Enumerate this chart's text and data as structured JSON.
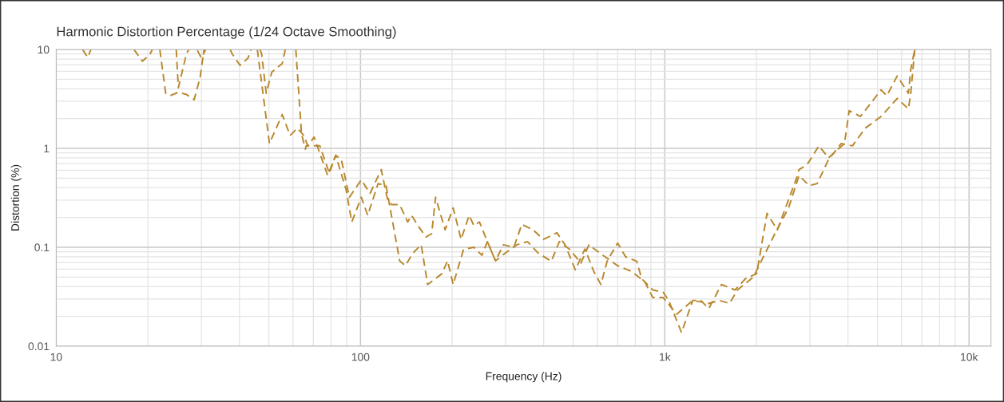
{
  "chart_data": {
    "type": "line",
    "title": "Harmonic Distortion Percentage (1/24 Octave Smoothing)",
    "xlabel": "Frequency (Hz)",
    "ylabel": "Distortion (%)",
    "log": "xy",
    "grid": true,
    "legend": false,
    "line_style": "dashed",
    "marker": "none",
    "xlim": [
      10,
      11800
    ],
    "ylim": [
      0.01,
      10
    ],
    "xticks": [
      10,
      100,
      {
        "value": 1000,
        "label": "1k"
      },
      {
        "value": 10000,
        "label": "10k"
      }
    ],
    "yticks": [
      0.01,
      0.1,
      1,
      10
    ],
    "series": [
      {
        "color": "#b8882e",
        "x": [
          12.2,
          12.7,
          13.0,
          15.0,
          18.0,
          19.2,
          20.3,
          20.7,
          22.5,
          24.8,
          25.2,
          26.8,
          27.3,
          28.2,
          29.1,
          30.0,
          31.0,
          34.0,
          37.3,
          37.8,
          40.2,
          42.7,
          43.7,
          45.0,
          46.7,
          47.3,
          49.0,
          51.1,
          55.3,
          56.6,
          59.0,
          61.3,
          64.0,
          65.9,
          66.3,
          73.5,
          79.0,
          82.9,
          86.5,
          91.9,
          100.6,
          107.5,
          117.0,
          122.8,
          126.6,
          134.5,
          142.9,
          147.2,
          154.5,
          164.1,
          171.3,
          176.5,
          189.7,
          201.6,
          214.1,
          227.5,
          235.9,
          246.0,
          261.2,
          277.7,
          295.0,
          319.2,
          338.8,
          369.0,
          399.0,
          442.2,
          469.9,
          508.2,
          546.5,
          584.1,
          616.6,
          647.1,
          699.8,
          743.6,
          809.1,
          839.5,
          913.3,
          988.1,
          1030,
          1135,
          1236,
          1312,
          1395,
          1536,
          1702,
          1841,
          2004,
          2168,
          2344,
          2710,
          2761,
          2931,
          3211,
          3451,
          3895,
          4036,
          4395,
          5140,
          5367,
          5805,
          6318,
          6433,
          6630
        ],
        "values": [
          10,
          8.3,
          10,
          null,
          10,
          7.6,
          8.9,
          10,
          null,
          10,
          4.1,
          9.1,
          10,
          null,
          9.8,
          8.2,
          10,
          null,
          10,
          9.1,
          6.9,
          8.2,
          10,
          null,
          10,
          9.1,
          3.6,
          5.9,
          7.2,
          10,
          null,
          10,
          1.4,
          0.98,
          1.06,
          1.06,
          0.56,
          0.85,
          0.77,
          0.32,
          0.48,
          0.35,
          0.61,
          0.3,
          0.27,
          0.27,
          0.18,
          0.21,
          0.165,
          0.127,
          0.137,
          0.32,
          0.15,
          0.25,
          0.12,
          0.21,
          0.165,
          0.18,
          0.114,
          0.073,
          0.106,
          0.1,
          0.17,
          0.15,
          0.12,
          0.14,
          0.106,
          0.059,
          0.096,
          0.057,
          0.042,
          0.073,
          0.11,
          0.08,
          0.072,
          0.048,
          0.037,
          0.035,
          0.029,
          0.0137,
          0.029,
          0.029,
          0.024,
          0.042,
          0.037,
          0.048,
          0.054,
          0.22,
          0.15,
          0.5,
          0.61,
          0.68,
          1.06,
          0.8,
          1.12,
          2.4,
          2.1,
          3.9,
          3.4,
          5.4,
          3.6,
          6.3,
          10
        ]
      },
      {
        "color": "#b8882e",
        "x": [
          21.9,
          22.9,
          23.7,
          25.2,
          26.8,
          28.4,
          29.7,
          30.6,
          38.0,
          45.8,
          50.2,
          55.3,
          58.7,
          62.0,
          65.1,
          67.1,
          70.4,
          78.0,
          82.9,
          89.7,
          93.6,
          100.6,
          105.6,
          114.2,
          121.3,
          134.5,
          140.3,
          149.0,
          158.3,
          166.2,
          185.2,
          193.2,
          201.6,
          218.1,
          235.9,
          250.6,
          261.2,
          277.7,
          300.4,
          326.9,
          353.7,
          382.5,
          423.6,
          450.3,
          487.2,
          530.2,
          563.3,
          609.4,
          699.8,
          776.0,
          859.0,
          913.3,
          988.1,
          1094,
          1236,
          1395,
          1508,
          1632,
          1734,
          1956,
          2078,
          2301,
          2552,
          2761,
          2985,
          3170,
          3451,
          3802,
          4138,
          4558,
          5140,
          5805,
          6318,
          6433,
          6630
        ],
        "values": [
          10,
          3.6,
          3.4,
          3.7,
          3.5,
          3.1,
          5.2,
          10,
          null,
          10,
          1.12,
          2.2,
          1.35,
          1.6,
          1.35,
          1.06,
          1.3,
          0.53,
          0.85,
          0.38,
          0.18,
          0.32,
          0.21,
          0.44,
          0.42,
          0.073,
          0.065,
          0.088,
          0.106,
          0.042,
          0.054,
          0.073,
          0.042,
          0.095,
          0.1,
          0.083,
          0.114,
          0.073,
          0.088,
          0.106,
          0.114,
          0.088,
          0.072,
          0.114,
          0.095,
          0.069,
          0.106,
          0.088,
          0.065,
          0.057,
          0.045,
          0.031,
          0.031,
          0.021,
          0.029,
          0.027,
          0.029,
          0.027,
          0.037,
          0.05,
          0.073,
          0.137,
          0.25,
          0.53,
          0.42,
          0.44,
          0.77,
          1.12,
          1.06,
          1.6,
          2.1,
          3.2,
          2.5,
          3.6,
          10
        ]
      }
    ]
  }
}
